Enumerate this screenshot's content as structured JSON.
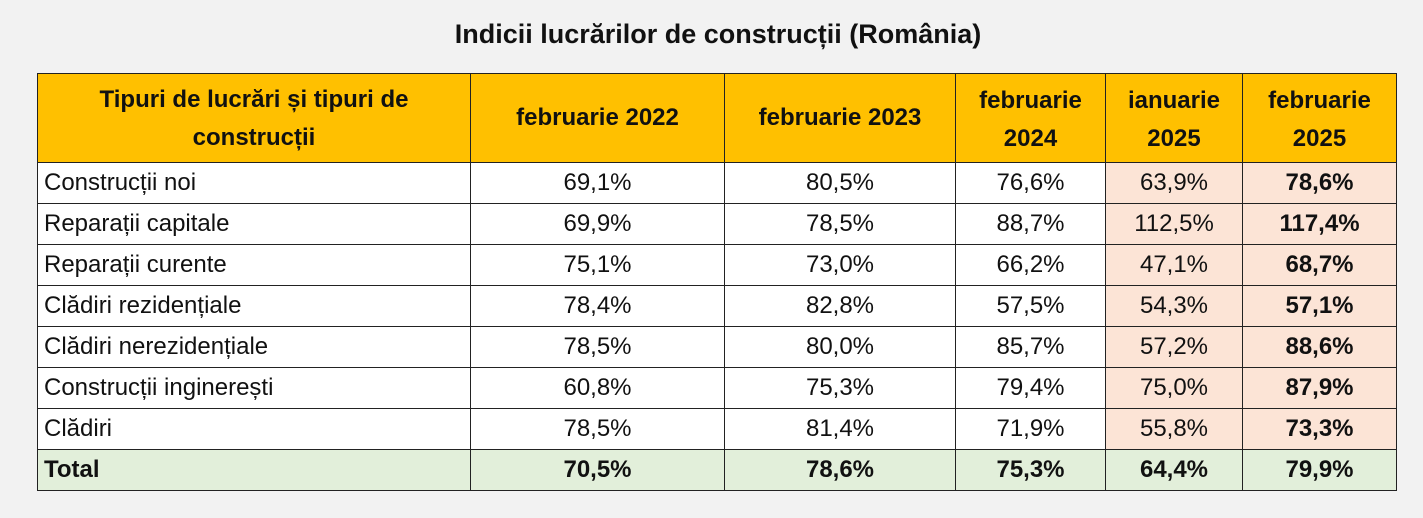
{
  "title": "Indicii lucrărilor de construcții (România)",
  "table": {
    "headers": [
      "Tipuri de lucrări și tipuri de construcții",
      "februarie 2022",
      "februarie 2023",
      "februarie 2024",
      "ianuarie 2025",
      "februarie 2025"
    ],
    "rows": [
      {
        "name": "Construcții noi",
        "values": [
          "69,1%",
          "80,5%",
          "76,6%",
          "63,9%",
          "78,6%"
        ]
      },
      {
        "name": "Reparații capitale",
        "values": [
          "69,9%",
          "78,5%",
          "88,7%",
          "112,5%",
          "117,4%"
        ]
      },
      {
        "name": "Reparații curente",
        "values": [
          "75,1%",
          "73,0%",
          "66,2%",
          "47,1%",
          "68,7%"
        ]
      },
      {
        "name": "Clădiri rezidențiale",
        "values": [
          "78,4%",
          "82,8%",
          "57,5%",
          "54,3%",
          "57,1%"
        ]
      },
      {
        "name": "Clădiri nerezidențiale",
        "values": [
          "78,5%",
          "80,0%",
          "85,7%",
          "57,2%",
          "88,6%"
        ]
      },
      {
        "name": "Construcții inginerești",
        "values": [
          "60,8%",
          "75,3%",
          "79,4%",
          "75,0%",
          "87,9%"
        ]
      },
      {
        "name": "Clădiri",
        "values": [
          "78,5%",
          "81,4%",
          "71,9%",
          "55,8%",
          "73,3%"
        ]
      }
    ],
    "total": {
      "name": "Total",
      "values": [
        "70,5%",
        "78,6%",
        "75,3%",
        "64,4%",
        "79,9%"
      ]
    }
  },
  "colors": {
    "header_bg": "#ffc000",
    "highlight_bg": "#fce4d6",
    "total_bg": "#e2efda",
    "page_bg": "#f2f2f2"
  }
}
